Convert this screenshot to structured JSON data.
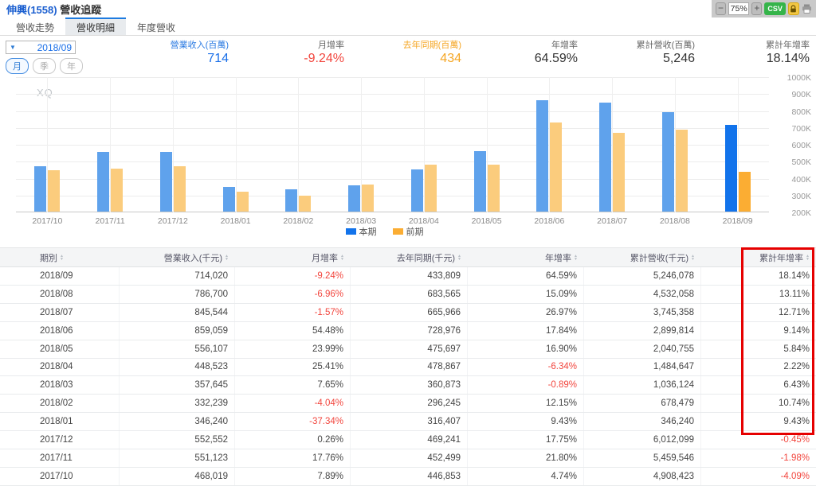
{
  "header": {
    "stock_title": "伸興(1558)",
    "page_title": "營收追蹤",
    "toolbar": {
      "zoom_out": "−",
      "zoom_level": "75%",
      "zoom_in": "+",
      "csv_label": "CSV"
    }
  },
  "tabs": [
    {
      "label": "營收走勢",
      "active": false
    },
    {
      "label": "營收明細",
      "active": true
    },
    {
      "label": "年度營收",
      "active": false
    }
  ],
  "controls": {
    "period_dropdown": "2018/09",
    "granularity": [
      {
        "label": "月",
        "active": true
      },
      {
        "label": "季",
        "active": false
      },
      {
        "label": "年",
        "active": false
      }
    ]
  },
  "stats": [
    {
      "label": "營業收入(百萬)",
      "value": "714",
      "label_color": "#2a7ae2",
      "value_color": "#1a6fe8"
    },
    {
      "label": "月增率",
      "value": "-9.24%",
      "label_color": "#666666",
      "value_color": "#f2453d"
    },
    {
      "label": "去年同期(百萬)",
      "value": "434",
      "label_color": "#f5a623",
      "value_color": "#f5a623"
    },
    {
      "label": "年增率",
      "value": "64.59%",
      "label_color": "#666666",
      "value_color": "#333333"
    },
    {
      "label": "累計營收(百萬)",
      "value": "5,246",
      "label_color": "#666666",
      "value_color": "#333333"
    },
    {
      "label": "累計年增率",
      "value": "18.14%",
      "label_color": "#666666",
      "value_color": "#333333"
    }
  ],
  "chart_data": {
    "type": "bar",
    "watermark": "XQ",
    "categories": [
      "2017/10",
      "2017/11",
      "2017/12",
      "2018/01",
      "2018/02",
      "2018/03",
      "2018/04",
      "2018/05",
      "2018/06",
      "2018/07",
      "2018/08",
      "2018/09"
    ],
    "series": [
      {
        "name": "本期",
        "values": [
          468019,
          551123,
          552552,
          346240,
          332239,
          357645,
          448523,
          556107,
          859059,
          845544,
          786700,
          714020
        ]
      },
      {
        "name": "前期",
        "values": [
          446853,
          452499,
          469241,
          316407,
          296245,
          360873,
          478867,
          475697,
          728976,
          665966,
          683565,
          433809
        ]
      }
    ],
    "unit": "千元",
    "ylim": [
      200000,
      1000000
    ],
    "ytick_labels": [
      "1000K",
      "900K",
      "800K",
      "700K",
      "600K",
      "500K",
      "400K",
      "300K",
      "200K"
    ],
    "legend_position": "bottom-center",
    "grid": true,
    "highlight_index": 11
  },
  "colors": {
    "bar_current_normal": "#5FA2EC",
    "bar_prev_normal": "#FBCC7D",
    "bar_current_highlight": "#1273EB",
    "bar_prev_highlight": "#FBAD33",
    "negative_red": "#f2453d",
    "accent_blue": "#1a6fe8",
    "accent_orange": "#f5a623",
    "highlight_box_red": "#e60000"
  },
  "table": {
    "columns": [
      "期別",
      "營業收入(千元)",
      "月增率",
      "去年同期(千元)",
      "年增率",
      "累計營收(千元)",
      "累計年增率"
    ],
    "rows": [
      [
        "2018/09",
        "714,020",
        "-9.24%",
        "433,809",
        "64.59%",
        "5,246,078",
        "18.14%"
      ],
      [
        "2018/08",
        "786,700",
        "-6.96%",
        "683,565",
        "15.09%",
        "4,532,058",
        "13.11%"
      ],
      [
        "2018/07",
        "845,544",
        "-1.57%",
        "665,966",
        "26.97%",
        "3,745,358",
        "12.71%"
      ],
      [
        "2018/06",
        "859,059",
        "54.48%",
        "728,976",
        "17.84%",
        "2,899,814",
        "9.14%"
      ],
      [
        "2018/05",
        "556,107",
        "23.99%",
        "475,697",
        "16.90%",
        "2,040,755",
        "5.84%"
      ],
      [
        "2018/04",
        "448,523",
        "25.41%",
        "478,867",
        "-6.34%",
        "1,484,647",
        "2.22%"
      ],
      [
        "2018/03",
        "357,645",
        "7.65%",
        "360,873",
        "-0.89%",
        "1,036,124",
        "6.43%"
      ],
      [
        "2018/02",
        "332,239",
        "-4.04%",
        "296,245",
        "12.15%",
        "678,479",
        "10.74%"
      ],
      [
        "2018/01",
        "346,240",
        "-37.34%",
        "316,407",
        "9.43%",
        "346,240",
        "9.43%"
      ],
      [
        "2017/12",
        "552,552",
        "0.26%",
        "469,241",
        "17.75%",
        "6,012,099",
        "-0.45%"
      ],
      [
        "2017/11",
        "551,123",
        "17.76%",
        "452,499",
        "21.80%",
        "5,459,546",
        "-1.98%"
      ],
      [
        "2017/10",
        "468,019",
        "7.89%",
        "446,853",
        "4.74%",
        "4,908,423",
        "-4.09%"
      ]
    ]
  }
}
